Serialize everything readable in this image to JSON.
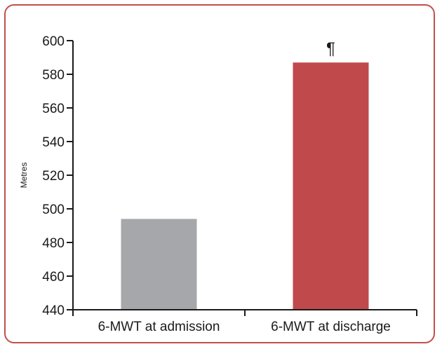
{
  "chart_data": {
    "type": "bar",
    "categories": [
      "6-MWT at admission",
      "6-MWT at discharge"
    ],
    "values": [
      494,
      587
    ],
    "title": "",
    "xlabel": "",
    "ylabel": "Metres",
    "ylim": [
      440,
      600
    ],
    "yticks": [
      440,
      460,
      480,
      500,
      520,
      540,
      560,
      580,
      600
    ],
    "bar_colors": [
      "#a6a7ab",
      "#c0494c"
    ],
    "frame_color": "#c0504d",
    "grid": false,
    "annotations": [
      {
        "category": "6-MWT at discharge",
        "text": "¶"
      }
    ]
  }
}
